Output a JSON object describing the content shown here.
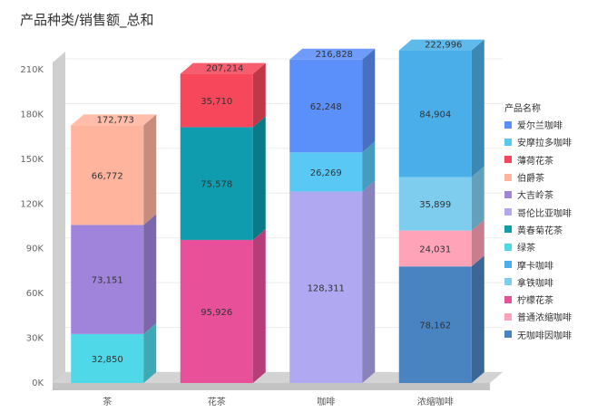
{
  "title": "产品种类/销售额_总和",
  "legend": {
    "title": "产品名称",
    "items": [
      {
        "name": "爱尔兰咖啡",
        "color": "#5B8FF9"
      },
      {
        "name": "安摩拉多咖啡",
        "color": "#5AC8F5"
      },
      {
        "name": "薄荷花茶",
        "color": "#F6475B"
      },
      {
        "name": "伯爵茶",
        "color": "#FFB49E"
      },
      {
        "name": "大吉岭茶",
        "color": "#A084DC"
      },
      {
        "name": "哥伦比亚咖啡",
        "color": "#B0A8F0"
      },
      {
        "name": "黄春菊花茶",
        "color": "#0E9CAE"
      },
      {
        "name": "绿茶",
        "color": "#4FD9E8"
      },
      {
        "name": "摩卡咖啡",
        "color": "#4AAFE8"
      },
      {
        "name": "拿铁咖啡",
        "color": "#7FCDEE"
      },
      {
        "name": "柠檬花茶",
        "color": "#E8509A"
      },
      {
        "name": "普通浓缩咖啡",
        "color": "#FFA3B8"
      },
      {
        "name": "无咖啡因咖啡",
        "color": "#4A84C0"
      }
    ]
  },
  "chart_data": {
    "type": "bar",
    "stacked": true,
    "style": "3d",
    "categories": [
      "茶",
      "花茶",
      "咖啡",
      "浓缩咖啡"
    ],
    "ylim": [
      0,
      210000
    ],
    "yticks": [
      "0K",
      "30K",
      "60K",
      "90K",
      "120K",
      "150K",
      "180K",
      "210K"
    ],
    "totals": [
      "172,773",
      "207,214",
      "216,828",
      "222,996"
    ],
    "stacks": [
      [
        {
          "series": "绿茶",
          "value": 32850,
          "label": "32,850"
        },
        {
          "series": "大吉岭茶",
          "value": 73151,
          "label": "73,151"
        },
        {
          "series": "伯爵茶",
          "value": 66772,
          "label": "66,772"
        }
      ],
      [
        {
          "series": "柠檬花茶",
          "value": 95926,
          "label": "95,926"
        },
        {
          "series": "黄春菊花茶",
          "value": 75578,
          "label": "75,578"
        },
        {
          "series": "薄荷花茶",
          "value": 35710,
          "label": "35,710"
        }
      ],
      [
        {
          "series": "哥伦比亚咖啡",
          "value": 128311,
          "label": "128,311"
        },
        {
          "series": "安摩拉多咖啡",
          "value": 26269,
          "label": "26,269"
        },
        {
          "series": "爱尔兰咖啡",
          "value": 62248,
          "label": "62,248"
        }
      ],
      [
        {
          "series": "无咖啡因咖啡",
          "value": 78162,
          "label": "78,162"
        },
        {
          "series": "普通浓缩咖啡",
          "value": 24031,
          "label": "24,031"
        },
        {
          "series": "拿铁咖啡",
          "value": 35899,
          "label": "35,899"
        },
        {
          "series": "摩卡咖啡",
          "value": 84904,
          "label": "84,904"
        }
      ]
    ]
  }
}
